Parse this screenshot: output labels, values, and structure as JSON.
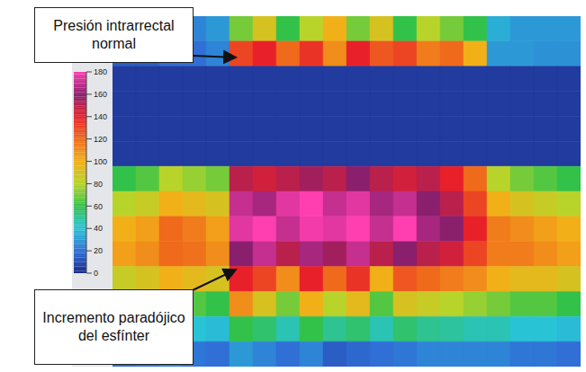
{
  "chart_data": {
    "type": "heatmap",
    "tick_labels": false,
    "colorbar_range": [
      0,
      180
    ],
    "colorbar_ticks": [
      0,
      20,
      40,
      60,
      80,
      100,
      120,
      140,
      160,
      180
    ],
    "colors": [
      "#1c2a8c",
      "#2f6fd6",
      "#29c3d6",
      "#32c24a",
      "#b8d42a",
      "#f2b018",
      "#f06a1c",
      "#e8202a",
      "#8a1f6e",
      "#ff3fb0"
    ],
    "cells": [
      [
        20,
        20,
        25,
        25,
        30,
        70,
        90,
        60,
        80,
        100,
        70,
        90,
        60,
        80,
        70,
        60,
        35,
        30,
        30,
        30
      ],
      [
        15,
        15,
        20,
        20,
        25,
        130,
        140,
        120,
        135,
        110,
        140,
        125,
        130,
        115,
        120,
        100,
        30,
        30,
        28,
        28
      ],
      [
        5,
        5,
        5,
        5,
        5,
        5,
        5,
        5,
        5,
        5,
        5,
        5,
        5,
        5,
        5,
        5,
        5,
        5,
        5,
        5
      ],
      [
        5,
        5,
        5,
        5,
        5,
        5,
        5,
        5,
        5,
        5,
        5,
        5,
        5,
        5,
        5,
        5,
        5,
        5,
        5,
        5
      ],
      [
        5,
        5,
        5,
        5,
        5,
        5,
        5,
        5,
        5,
        5,
        5,
        5,
        5,
        5,
        5,
        5,
        5,
        5,
        5,
        5
      ],
      [
        5,
        5,
        5,
        5,
        5,
        5,
        5,
        5,
        5,
        5,
        5,
        5,
        5,
        5,
        5,
        5,
        5,
        5,
        5,
        5
      ],
      [
        60,
        65,
        80,
        75,
        70,
        150,
        145,
        150,
        155,
        150,
        160,
        150,
        145,
        150,
        140,
        120,
        80,
        70,
        65,
        60
      ],
      [
        80,
        85,
        100,
        95,
        90,
        170,
        165,
        175,
        180,
        170,
        175,
        165,
        170,
        160,
        150,
        130,
        100,
        90,
        85,
        80
      ],
      [
        100,
        105,
        120,
        115,
        105,
        175,
        180,
        170,
        178,
        175,
        180,
        170,
        180,
        165,
        160,
        140,
        115,
        110,
        105,
        100
      ],
      [
        105,
        110,
        120,
        118,
        110,
        160,
        170,
        150,
        165,
        155,
        170,
        150,
        160,
        150,
        145,
        130,
        115,
        115,
        110,
        105
      ],
      [
        85,
        90,
        100,
        95,
        90,
        140,
        130,
        110,
        140,
        120,
        135,
        100,
        125,
        120,
        115,
        110,
        100,
        95,
        95,
        90
      ],
      [
        55,
        60,
        70,
        65,
        60,
        110,
        90,
        70,
        100,
        80,
        95,
        65,
        90,
        85,
        80,
        75,
        70,
        65,
        65,
        60
      ],
      [
        35,
        35,
        45,
        40,
        38,
        60,
        55,
        45,
        60,
        50,
        55,
        45,
        55,
        50,
        48,
        45,
        45,
        40,
        40,
        38
      ],
      [
        20,
        22,
        25,
        22,
        20,
        30,
        25,
        20,
        25,
        15,
        18,
        20,
        22,
        25,
        25,
        25,
        25,
        22,
        22,
        20
      ]
    ],
    "annotations": [
      {
        "text": "Presión intrarrectal normal"
      },
      {
        "text": "Incremento paradójico del esfínter"
      }
    ]
  }
}
